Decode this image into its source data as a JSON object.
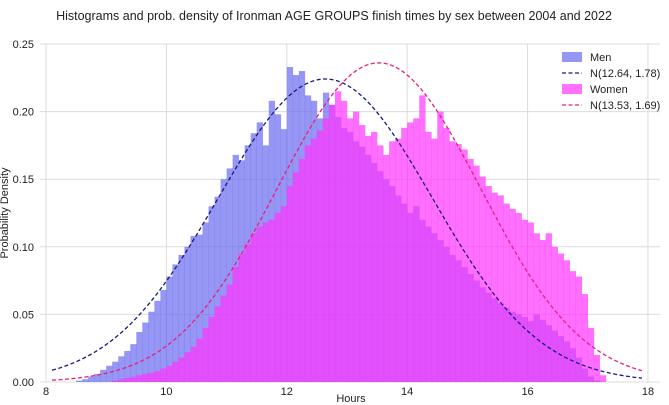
{
  "chart_data": {
    "type": "histogram",
    "title": "Histograms and prob. density of Ironman AGE GROUPS finish times by sex between 2004 and 2022",
    "xlabel": "Hours",
    "ylabel": "Probability Density",
    "xlim": [
      7.9,
      18.2
    ],
    "ylim": [
      0,
      0.25
    ],
    "xticks": [
      8,
      10,
      12,
      14,
      16,
      18
    ],
    "yticks": [
      0.0,
      0.05,
      0.1,
      0.15,
      0.2,
      0.25
    ],
    "grid": true,
    "legend_position": "top-right",
    "bin_width": 0.1,
    "histograms": [
      {
        "name": "Men",
        "color": "#6a6af0",
        "bins": [
          [
            8.5,
            0.001
          ],
          [
            8.6,
            0.002
          ],
          [
            8.7,
            0.004
          ],
          [
            8.8,
            0.006
          ],
          [
            8.9,
            0.009
          ],
          [
            9.0,
            0.012
          ],
          [
            9.1,
            0.015
          ],
          [
            9.2,
            0.019
          ],
          [
            9.3,
            0.023
          ],
          [
            9.4,
            0.028
          ],
          [
            9.5,
            0.037
          ],
          [
            9.6,
            0.044
          ],
          [
            9.7,
            0.052
          ],
          [
            9.8,
            0.06
          ],
          [
            9.9,
            0.068
          ],
          [
            10.0,
            0.078
          ],
          [
            10.1,
            0.087
          ],
          [
            10.2,
            0.094
          ],
          [
            10.3,
            0.1
          ],
          [
            10.4,
            0.108
          ],
          [
            10.5,
            0.109
          ],
          [
            10.6,
            0.118
          ],
          [
            10.7,
            0.13
          ],
          [
            10.8,
            0.137
          ],
          [
            10.9,
            0.15
          ],
          [
            11.0,
            0.158
          ],
          [
            11.1,
            0.168
          ],
          [
            11.2,
            0.164
          ],
          [
            11.3,
            0.175
          ],
          [
            11.4,
            0.184
          ],
          [
            11.5,
            0.192
          ],
          [
            11.6,
            0.175
          ],
          [
            11.7,
            0.208
          ],
          [
            11.8,
            0.198
          ],
          [
            11.9,
            0.187
          ],
          [
            12.0,
            0.233
          ],
          [
            12.1,
            0.227
          ],
          [
            12.2,
            0.23
          ],
          [
            12.3,
            0.212
          ],
          [
            12.4,
            0.208
          ],
          [
            12.5,
            0.195
          ],
          [
            12.6,
            0.214
          ],
          [
            12.7,
            0.205
          ],
          [
            12.8,
            0.196
          ],
          [
            12.9,
            0.188
          ],
          [
            13.0,
            0.185
          ],
          [
            13.1,
            0.178
          ],
          [
            13.2,
            0.174
          ],
          [
            13.3,
            0.168
          ],
          [
            13.4,
            0.162
          ],
          [
            13.5,
            0.156
          ],
          [
            13.6,
            0.15
          ],
          [
            13.7,
            0.145
          ],
          [
            13.8,
            0.138
          ],
          [
            13.9,
            0.132
          ],
          [
            14.0,
            0.125
          ],
          [
            14.1,
            0.13
          ],
          [
            14.2,
            0.12
          ],
          [
            14.3,
            0.115
          ],
          [
            14.4,
            0.11
          ],
          [
            14.5,
            0.105
          ],
          [
            14.6,
            0.1
          ],
          [
            14.7,
            0.094
          ],
          [
            14.8,
            0.09
          ],
          [
            14.9,
            0.085
          ],
          [
            15.0,
            0.08
          ],
          [
            15.1,
            0.075
          ],
          [
            15.2,
            0.07
          ],
          [
            15.3,
            0.066
          ],
          [
            15.4,
            0.062
          ],
          [
            15.5,
            0.058
          ],
          [
            15.6,
            0.055
          ],
          [
            15.7,
            0.052
          ],
          [
            15.8,
            0.05
          ],
          [
            15.9,
            0.048
          ],
          [
            16.0,
            0.045
          ],
          [
            16.1,
            0.05
          ],
          [
            16.2,
            0.046
          ],
          [
            16.3,
            0.042
          ],
          [
            16.4,
            0.038
          ],
          [
            16.5,
            0.034
          ],
          [
            16.6,
            0.03
          ],
          [
            16.7,
            0.025
          ],
          [
            16.8,
            0.018
          ],
          [
            16.9,
            0.01
          ],
          [
            17.0,
            0.004
          ],
          [
            17.1,
            0.001
          ]
        ]
      },
      {
        "name": "Women",
        "color": "#ff33ff",
        "bins": [
          [
            9.1,
            0.001
          ],
          [
            9.2,
            0.002
          ],
          [
            9.3,
            0.003
          ],
          [
            9.4,
            0.004
          ],
          [
            9.5,
            0.005
          ],
          [
            9.6,
            0.006
          ],
          [
            9.7,
            0.007
          ],
          [
            9.8,
            0.008
          ],
          [
            9.9,
            0.01
          ],
          [
            10.0,
            0.012
          ],
          [
            10.1,
            0.015
          ],
          [
            10.2,
            0.018
          ],
          [
            10.3,
            0.022
          ],
          [
            10.4,
            0.026
          ],
          [
            10.5,
            0.032
          ],
          [
            10.6,
            0.04
          ],
          [
            10.7,
            0.048
          ],
          [
            10.8,
            0.056
          ],
          [
            10.9,
            0.064
          ],
          [
            11.0,
            0.072
          ],
          [
            11.1,
            0.085
          ],
          [
            11.2,
            0.095
          ],
          [
            11.3,
            0.102
          ],
          [
            11.4,
            0.11
          ],
          [
            11.5,
            0.115
          ],
          [
            11.6,
            0.118
          ],
          [
            11.7,
            0.12
          ],
          [
            11.8,
            0.125
          ],
          [
            11.9,
            0.13
          ],
          [
            12.0,
            0.145
          ],
          [
            12.1,
            0.155
          ],
          [
            12.2,
            0.165
          ],
          [
            12.3,
            0.175
          ],
          [
            12.4,
            0.18
          ],
          [
            12.5,
            0.186
          ],
          [
            12.6,
            0.195
          ],
          [
            12.7,
            0.205
          ],
          [
            12.8,
            0.215
          ],
          [
            12.9,
            0.208
          ],
          [
            13.0,
            0.195
          ],
          [
            13.1,
            0.2
          ],
          [
            13.2,
            0.19
          ],
          [
            13.3,
            0.182
          ],
          [
            13.4,
            0.185
          ],
          [
            13.5,
            0.175
          ],
          [
            13.6,
            0.168
          ],
          [
            13.7,
            0.178
          ],
          [
            13.8,
            0.18
          ],
          [
            13.9,
            0.188
          ],
          [
            14.0,
            0.192
          ],
          [
            14.1,
            0.195
          ],
          [
            14.2,
            0.212
          ],
          [
            14.3,
            0.185
          ],
          [
            14.4,
            0.18
          ],
          [
            14.5,
            0.2
          ],
          [
            14.6,
            0.188
          ],
          [
            14.7,
            0.178
          ],
          [
            14.8,
            0.176
          ],
          [
            14.9,
            0.172
          ],
          [
            15.0,
            0.165
          ],
          [
            15.1,
            0.16
          ],
          [
            15.2,
            0.152
          ],
          [
            15.3,
            0.145
          ],
          [
            15.4,
            0.14
          ],
          [
            15.5,
            0.138
          ],
          [
            15.6,
            0.132
          ],
          [
            15.7,
            0.128
          ],
          [
            15.8,
            0.125
          ],
          [
            15.9,
            0.12
          ],
          [
            16.0,
            0.118
          ],
          [
            16.1,
            0.11
          ],
          [
            16.2,
            0.105
          ],
          [
            16.3,
            0.11
          ],
          [
            16.4,
            0.1
          ],
          [
            16.5,
            0.095
          ],
          [
            16.6,
            0.09
          ],
          [
            16.7,
            0.082
          ],
          [
            16.8,
            0.078
          ],
          [
            16.9,
            0.065
          ],
          [
            17.0,
            0.04
          ],
          [
            17.1,
            0.02
          ],
          [
            17.2,
            0.005
          ]
        ]
      }
    ],
    "series": [
      {
        "name": "N(12.64, 1.78)",
        "type": "normal_pdf",
        "mean": 12.64,
        "std": 1.78,
        "x_range": [
          8.1,
          17.9
        ],
        "color": "#1a1a7a",
        "dash": true
      },
      {
        "name": "N(13.53, 1.69)",
        "type": "normal_pdf",
        "mean": 13.53,
        "std": 1.69,
        "x_range": [
          8.1,
          17.9
        ],
        "color": "#e8207a",
        "dash": true
      }
    ]
  }
}
